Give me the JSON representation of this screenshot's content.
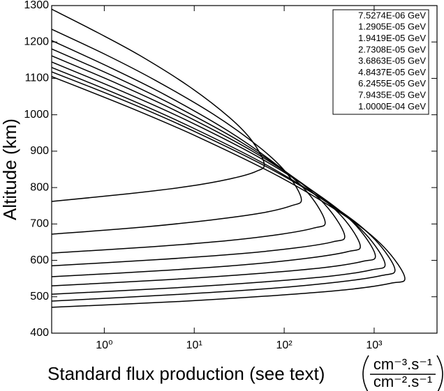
{
  "chart_data": {
    "type": "line",
    "x_label": "Standard flux production (see text)",
    "x_label_unit_numerator": "cm⁻³.s⁻¹",
    "x_label_unit_denominator": "cm⁻².s⁻¹",
    "y_label": "Altitude (km)",
    "xscale": "log",
    "xlim": [
      0.26,
      5000
    ],
    "xticks": [
      {
        "value": 1,
        "label": "10⁰"
      },
      {
        "value": 10,
        "label": "10¹"
      },
      {
        "value": 100,
        "label": "10²"
      },
      {
        "value": 1000,
        "label": "10³"
      }
    ],
    "ylim": [
      400,
      1300
    ],
    "yticks": [
      400,
      500,
      600,
      700,
      800,
      900,
      1000,
      1100,
      1200,
      1300
    ],
    "legend": "top-right",
    "series": [
      {
        "name": "7.5274E-06 GeV",
        "color": "#000000",
        "x": [
          0.26,
          1.85,
          8.45,
          25.1,
          48.2,
          60,
          43.7,
          24.5,
          8.75,
          2.48,
          0.84,
          0.26
        ],
        "values": [
          762,
          783,
          803,
          824,
          844,
          865,
          929,
          993,
          1078,
          1163,
          1226,
          1290
        ]
      },
      {
        "name": "1.2905E-05 GeV",
        "color": "#000000",
        "x": [
          0.26,
          2.59,
          15.5,
          55.7,
          120,
          155,
          107,
          54.2,
          16.2,
          3.67,
          1.04,
          0.26
        ],
        "values": [
          672,
          691,
          711,
          730,
          750,
          769,
          839,
          909,
          1002,
          1095,
          1165,
          1235
        ]
      },
      {
        "name": "1.9419E-05 GeV",
        "color": "#000000",
        "x": [
          0.26,
          3.23,
          23.0,
          93.0,
          215,
          285,
          190,
          90.3,
          24.0,
          4.72,
          1.18,
          0.26
        ],
        "values": [
          620,
          637,
          654,
          672,
          689,
          706,
          781,
          855,
          955,
          1055,
          1129,
          1204
        ]
      },
      {
        "name": "2.7308E-05 GeV",
        "color": "#000000",
        "x": [
          0.26,
          3.87,
          31.6,
          142,
          348,
          470,
          304,
          137,
          33.1,
          5.81,
          1.32,
          0.26
        ],
        "values": [
          585,
          602,
          618,
          635,
          651,
          668,
          745,
          822,
          925,
          1027,
          1104,
          1181
        ]
      },
      {
        "name": "3.6863E-05 GeV",
        "color": "#000000",
        "x": [
          0.26,
          4.47,
          40.7,
          198,
          511,
          700,
          443,
          191,
          42.9,
          6.85,
          1.44,
          0.26
        ],
        "values": [
          555,
          572,
          589,
          607,
          624,
          641,
          719,
          797,
          902,
          1006,
          1084,
          1162
        ]
      },
      {
        "name": "4.8437E-05 GeV",
        "color": "#000000",
        "x": [
          0.26,
          5.13,
          52.2,
          274,
          740,
          1030,
          637,
          264,
          55.1,
          8.05,
          1.56,
          0.26
        ],
        "values": [
          530,
          547,
          564,
          580,
          597,
          614,
          694,
          773,
          880,
          986,
          1065,
          1145
        ]
      },
      {
        "name": "6.2455E-05 GeV",
        "color": "#000000",
        "x": [
          0.26,
          5.61,
          61.2,
          337,
          940,
          1320,
          805,
          325,
          64.7,
          8.91,
          1.65,
          0.26
        ],
        "values": [
          507,
          524,
          541,
          557,
          574,
          591,
          672,
          753,
          861,
          968,
          1049,
          1130
        ]
      },
      {
        "name": "7.9435E-05 GeV",
        "color": "#000000",
        "x": [
          0.26,
          6.14,
          71.9,
          417,
          1190,
          1700,
          1020,
          401,
          76.0,
          9.91,
          1.74,
          0.26
        ],
        "values": [
          488,
          506,
          523,
          541,
          558,
          576,
          657,
          739,
          847,
          955,
          1037,
          1118
        ]
      },
      {
        "name": "1.0000E-04 GeV",
        "color": "#000000",
        "x": [
          0.26,
          6.73,
          84.5,
          515,
          1520,
          2190,
          1290,
          496,
          89.5,
          11.0,
          1.83,
          0.26
        ],
        "values": [
          471,
          487,
          504,
          520,
          537,
          553,
          636,
          719,
          829,
          939,
          1022,
          1105
        ]
      }
    ]
  }
}
